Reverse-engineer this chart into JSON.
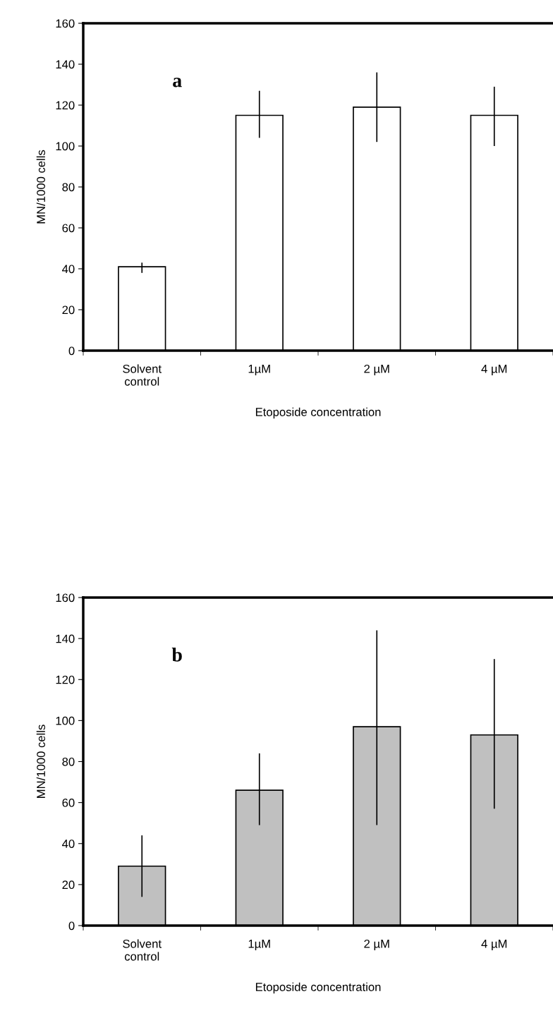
{
  "chart_data": [
    {
      "type": "bar",
      "xlabel": "Etoposide concentration",
      "ylabel": "MN/1000 cells",
      "annotations": [
        "a"
      ],
      "categories": [
        "Solvent\ncontrol",
        "1µM",
        "2 µM",
        "4 µM"
      ],
      "series": [
        {
          "color": "#ffffff",
          "values": [
            41,
            115,
            119,
            115
          ],
          "errors": [
            [
              38,
              43
            ],
            [
              104,
              127
            ],
            [
              102,
              136
            ],
            [
              100,
              129
            ]
          ]
        }
      ],
      "ylim": [
        0,
        160
      ],
      "yticks": [
        0,
        20,
        40,
        60,
        80,
        100,
        120,
        140,
        160
      ],
      "grid": false,
      "legend": false
    },
    {
      "type": "bar",
      "xlabel": "Etoposide concentration",
      "ylabel": "MN/1000 cells",
      "annotations": [
        "b"
      ],
      "categories": [
        "Solvent\ncontrol",
        "1µM",
        "2 µM",
        "4 µM"
      ],
      "series": [
        {
          "color": "#c0c0c0",
          "values": [
            29,
            66,
            97,
            93
          ],
          "errors": [
            [
              14,
              44
            ],
            [
              49,
              84
            ],
            [
              49,
              144
            ],
            [
              57,
              130
            ]
          ]
        }
      ],
      "ylim": [
        0,
        160
      ],
      "yticks": [
        0,
        20,
        40,
        60,
        80,
        100,
        120,
        140,
        160
      ],
      "grid": false,
      "legend": false
    }
  ]
}
